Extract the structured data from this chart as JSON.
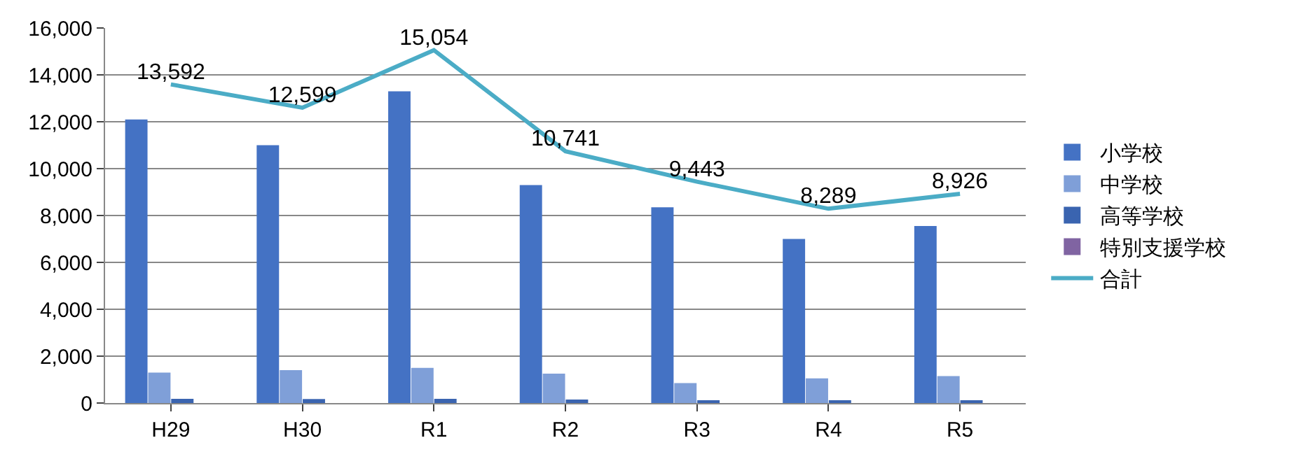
{
  "chart_data": {
    "type": "bar",
    "categories": [
      "H29",
      "H30",
      "R1",
      "R2",
      "R3",
      "R4",
      "R5"
    ],
    "series": [
      {
        "name": "小学校",
        "color": "#4472c4",
        "values": [
          12100,
          11000,
          13300,
          9300,
          8350,
          7000,
          7550
        ]
      },
      {
        "name": "中学校",
        "color": "#7f9fd8",
        "values": [
          1300,
          1400,
          1500,
          1250,
          850,
          1050,
          1150
        ]
      },
      {
        "name": "高等学校",
        "color": "#3a64b0",
        "values": [
          180,
          170,
          180,
          150,
          120,
          80,
          100
        ]
      },
      {
        "name": "特別支援学校",
        "color": "#8064a2",
        "values": [
          null,
          null,
          null,
          null,
          null,
          null,
          null
        ]
      },
      {
        "name": "合計",
        "type": "line",
        "color": "#4bacc6",
        "values": [
          13592,
          12599,
          15054,
          10741,
          9443,
          8289,
          8926
        ],
        "value_labels": [
          "13,592",
          "12,599",
          "15,054",
          "10,741",
          "9,443",
          "8,289",
          "8,926"
        ],
        "marker": "none"
      }
    ],
    "ylim": [
      0,
      16000
    ],
    "yticks": [
      {
        "value": 0,
        "label": "0"
      },
      {
        "value": 2000,
        "label": "2,000"
      },
      {
        "value": 4000,
        "label": "4,000"
      },
      {
        "value": 6000,
        "label": "6,000"
      },
      {
        "value": 8000,
        "label": "8,000"
      },
      {
        "value": 10000,
        "label": "10,000"
      },
      {
        "value": 12000,
        "label": "12,000"
      },
      {
        "value": 14000,
        "label": "14,000"
      },
      {
        "value": 16000,
        "label": "16,000"
      }
    ],
    "grid": "y",
    "legend": "right"
  }
}
